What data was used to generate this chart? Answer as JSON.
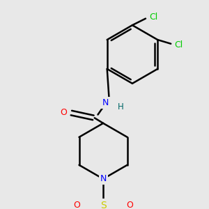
{
  "bg_color": "#e8e8e8",
  "bond_color": "#000000",
  "atom_colors": {
    "O": "#ff0000",
    "N": "#0000ff",
    "S": "#cccc00",
    "Cl": "#00cc00",
    "H": "#006666",
    "C": "#000000"
  },
  "figsize": [
    3.0,
    3.0
  ],
  "dpi": 100
}
